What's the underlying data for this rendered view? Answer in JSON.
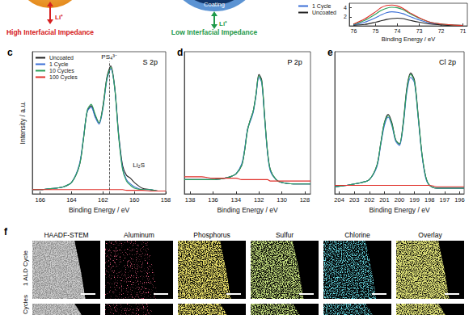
{
  "schematic": {
    "left": {
      "ion": "Li⁺",
      "label": "High Interfacial Impedance"
    },
    "right": {
      "coating": "Coating",
      "ion": "Li⁺",
      "label": "Low Interfacial Impedance"
    }
  },
  "chart_data": [
    {
      "type": "line",
      "xlabel": "Binding Energy / eV",
      "x": [
        76,
        75.5,
        75,
        74.75,
        74.5,
        74.25,
        74,
        73.75,
        73.5,
        73,
        72.5,
        72,
        71.5,
        71
      ],
      "xlim": [
        76.2,
        70.8
      ],
      "xticks": [
        76,
        75,
        74,
        73,
        72,
        71
      ],
      "ylim": [
        0,
        5
      ],
      "yticks": [
        2,
        4
      ],
      "legend": "left",
      "series": [
        {
          "name": "1 Cycle",
          "color": "#3b6fd6",
          "values": [
            0.2,
            0.8,
            1.8,
            2.4,
            2.9,
            3.1,
            3.0,
            2.7,
            2.2,
            1.3,
            0.6,
            0.3,
            0.15,
            0.1
          ]
        },
        {
          "name": "Uncoated",
          "color": "#222222",
          "values": [
            0.1,
            0.3,
            0.8,
            1.1,
            1.4,
            1.6,
            1.7,
            1.6,
            1.3,
            0.8,
            0.4,
            0.2,
            0.1,
            0.1
          ]
        },
        {
          "color": "#2ca05a",
          "values": [
            0.3,
            1.2,
            2.6,
            3.4,
            3.9,
            4.1,
            4.0,
            3.6,
            2.9,
            1.7,
            0.8,
            0.4,
            0.2,
            0.1
          ]
        },
        {
          "color": "#e0302a",
          "values": [
            0.4,
            1.5,
            3.1,
            4.0,
            4.5,
            4.6,
            4.4,
            3.9,
            3.1,
            1.8,
            0.8,
            0.4,
            0.2,
            0.1
          ]
        }
      ]
    },
    {
      "type": "line",
      "panel": "c",
      "title": "S 2p",
      "xlabel": "Binding Energy / eV",
      "ylabel": "Intensity / a.u.",
      "x": [
        166.5,
        166,
        165.5,
        165,
        164.5,
        164,
        163.5,
        163.25,
        163,
        162.75,
        162.5,
        162.25,
        162,
        161.75,
        161.5,
        161.25,
        161,
        160.75,
        160.5,
        160.25,
        160,
        159.5,
        159,
        158.5,
        158
      ],
      "xlim": [
        166.5,
        158
      ],
      "xticks": [
        166,
        164,
        162,
        160,
        158
      ],
      "ylim": [
        0,
        1
      ],
      "tick_labels": "x",
      "legend": "upper left",
      "series": [
        {
          "name": "Uncoated",
          "color": "#222222",
          "values": [
            0.03,
            0.03,
            0.035,
            0.04,
            0.05,
            0.08,
            0.2,
            0.38,
            0.58,
            0.62,
            0.55,
            0.5,
            0.62,
            0.82,
            0.9,
            0.75,
            0.42,
            0.2,
            0.13,
            0.11,
            0.08,
            0.04,
            0.03,
            0.02,
            0.02
          ]
        },
        {
          "name": "1 Cycle",
          "color": "#3b6fd6",
          "values": [
            0.03,
            0.03,
            0.035,
            0.04,
            0.05,
            0.08,
            0.21,
            0.39,
            0.58,
            0.61,
            0.54,
            0.49,
            0.6,
            0.8,
            0.88,
            0.74,
            0.41,
            0.18,
            0.1,
            0.07,
            0.05,
            0.03,
            0.03,
            0.02,
            0.02
          ]
        },
        {
          "name": "10 Cycles",
          "color": "#2ca05a",
          "values": [
            0.03,
            0.03,
            0.035,
            0.04,
            0.05,
            0.08,
            0.2,
            0.38,
            0.59,
            0.63,
            0.56,
            0.5,
            0.61,
            0.81,
            0.89,
            0.74,
            0.4,
            0.17,
            0.09,
            0.06,
            0.04,
            0.03,
            0.03,
            0.02,
            0.02
          ]
        },
        {
          "name": "100 Cycles",
          "color": "#e0302a",
          "values": [
            0.03,
            0.03,
            0.03,
            0.03,
            0.03,
            0.03,
            0.03,
            0.03,
            0.03,
            0.03,
            0.03,
            0.03,
            0.03,
            0.03,
            0.03,
            0.03,
            0.03,
            0.03,
            0.025,
            0.025,
            0.025,
            0.025,
            0.02,
            0.02,
            0.02
          ]
        }
      ],
      "annotations": [
        {
          "text": "PS₄³⁻",
          "x": 161.6,
          "y": 0.93,
          "line_style": "dashed"
        },
        {
          "text": "Li₂S",
          "x": 160.2,
          "y": 0.2
        }
      ]
    },
    {
      "type": "line",
      "panel": "d",
      "title": "P 2p",
      "xlabel": "Binding Energy / eV",
      "x": [
        138.5,
        137,
        136,
        135,
        134.5,
        134,
        133.5,
        133.25,
        133,
        132.75,
        132.5,
        132.25,
        132,
        131.75,
        131.5,
        131.25,
        131,
        130.5,
        130,
        129,
        128,
        127.5
      ],
      "xlim": [
        138.5,
        127.5
      ],
      "xticks": [
        138,
        136,
        134,
        132,
        130,
        128
      ],
      "ylim": [
        0,
        1
      ],
      "tick_labels": "x",
      "series": [
        {
          "name": "Uncoated",
          "color": "#222222",
          "values": [
            0.1,
            0.1,
            0.1,
            0.11,
            0.12,
            0.14,
            0.2,
            0.3,
            0.45,
            0.52,
            0.58,
            0.7,
            0.84,
            0.8,
            0.55,
            0.3,
            0.17,
            0.1,
            0.08,
            0.07,
            0.07,
            0.07
          ]
        },
        {
          "name": "1 Cycle",
          "color": "#3b6fd6",
          "values": [
            0.1,
            0.1,
            0.1,
            0.11,
            0.12,
            0.14,
            0.21,
            0.31,
            0.45,
            0.51,
            0.57,
            0.69,
            0.82,
            0.78,
            0.53,
            0.29,
            0.16,
            0.1,
            0.08,
            0.07,
            0.07,
            0.07
          ]
        },
        {
          "name": "10 Cycles",
          "color": "#2ca05a",
          "values": [
            0.1,
            0.1,
            0.1,
            0.11,
            0.12,
            0.14,
            0.2,
            0.3,
            0.44,
            0.52,
            0.58,
            0.7,
            0.83,
            0.79,
            0.54,
            0.3,
            0.17,
            0.1,
            0.08,
            0.07,
            0.07,
            0.07
          ]
        },
        {
          "name": "100 Cycles",
          "color": "#e0302a",
          "values": [
            0.12,
            0.12,
            0.11,
            0.11,
            0.11,
            0.11,
            0.1,
            0.1,
            0.1,
            0.1,
            0.1,
            0.1,
            0.1,
            0.1,
            0.1,
            0.1,
            0.09,
            0.09,
            0.09,
            0.09,
            0.09,
            0.09
          ]
        }
      ]
    },
    {
      "type": "line",
      "panel": "e",
      "title": "Cl 2p",
      "xlabel": "Binding Energy / eV",
      "x": [
        204.3,
        203.5,
        203,
        202.5,
        202,
        201.5,
        201.25,
        201,
        200.75,
        200.5,
        200.25,
        200,
        199.75,
        199.5,
        199.25,
        199,
        198.75,
        198.5,
        198.25,
        198,
        197.5,
        197,
        196.5,
        195.7
      ],
      "xlim": [
        204.3,
        195.7
      ],
      "xticks": [
        204,
        203,
        202,
        201,
        200,
        199,
        198,
        197,
        196
      ],
      "ylim": [
        0,
        1
      ],
      "tick_labels": "x",
      "series": [
        {
          "name": "Uncoated",
          "color": "#222222",
          "values": [
            0.05,
            0.06,
            0.07,
            0.08,
            0.1,
            0.2,
            0.35,
            0.5,
            0.56,
            0.5,
            0.38,
            0.35,
            0.5,
            0.75,
            0.85,
            0.8,
            0.55,
            0.28,
            0.12,
            0.06,
            0.04,
            0.04,
            0.04,
            0.04
          ]
        },
        {
          "name": "1 Cycle",
          "color": "#3b6fd6",
          "values": [
            0.05,
            0.06,
            0.07,
            0.08,
            0.1,
            0.19,
            0.34,
            0.48,
            0.54,
            0.48,
            0.37,
            0.34,
            0.48,
            0.72,
            0.82,
            0.78,
            0.53,
            0.27,
            0.11,
            0.06,
            0.04,
            0.04,
            0.04,
            0.04
          ]
        },
        {
          "name": "10 Cycles",
          "color": "#2ca05a",
          "values": [
            0.05,
            0.06,
            0.07,
            0.08,
            0.1,
            0.2,
            0.35,
            0.5,
            0.55,
            0.49,
            0.38,
            0.35,
            0.49,
            0.74,
            0.84,
            0.79,
            0.54,
            0.28,
            0.12,
            0.06,
            0.04,
            0.04,
            0.04,
            0.04
          ]
        },
        {
          "name": "100 Cycles",
          "color": "#e0302a",
          "values": [
            0.06,
            0.06,
            0.06,
            0.06,
            0.06,
            0.06,
            0.06,
            0.06,
            0.06,
            0.06,
            0.06,
            0.06,
            0.06,
            0.06,
            0.06,
            0.06,
            0.06,
            0.06,
            0.06,
            0.06,
            0.05,
            0.05,
            0.05,
            0.05
          ]
        }
      ]
    }
  ],
  "panel_f": {
    "label": "f",
    "columns": [
      "HAADF-STEM",
      "Aluminum",
      "Phosphorus",
      "Sulfur",
      "Chlorine",
      "Overlay"
    ],
    "rows": [
      "1 ALD Cycle",
      "Cycles"
    ]
  }
}
